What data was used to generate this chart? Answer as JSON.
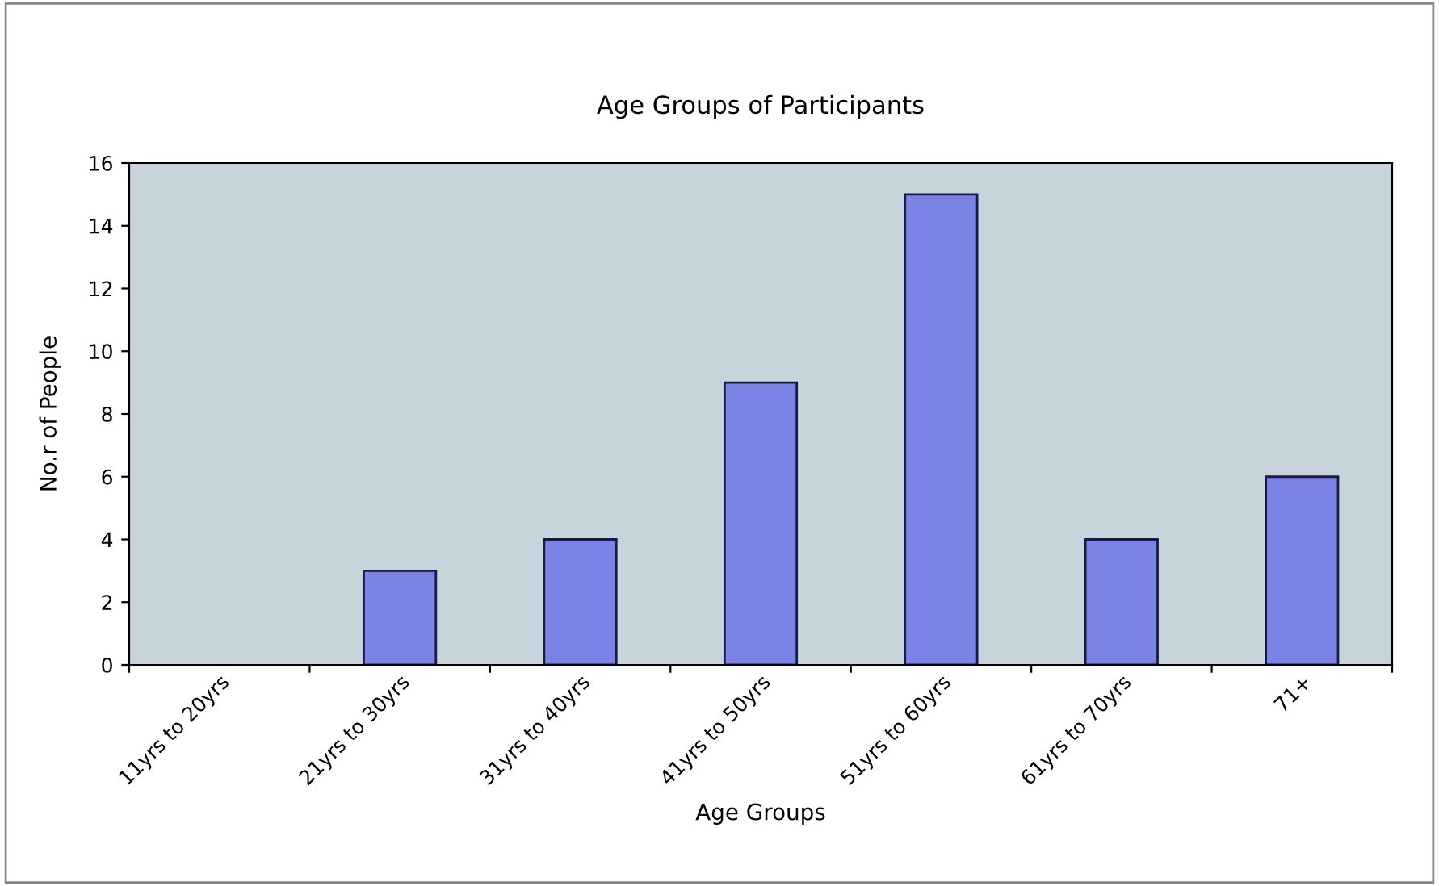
{
  "chart_data": {
    "type": "bar",
    "title": "Age Groups of Participants",
    "xlabel": "Age Groups",
    "ylabel": "No.r of People",
    "categories": [
      "11yrs to 20yrs",
      "21yrs to 30yrs",
      "31yrs to 40yrs",
      "41yrs to 50yrs",
      "51yrs to 60yrs",
      "61yrs to 70yrs",
      "71+"
    ],
    "values": [
      0,
      3,
      4,
      9,
      15,
      4,
      6
    ],
    "color": "#7b84e6",
    "ylim": [
      0,
      16
    ],
    "yticks": [
      0,
      2,
      4,
      6,
      8,
      10,
      12,
      14,
      16
    ],
    "grid": false,
    "legend": false
  }
}
